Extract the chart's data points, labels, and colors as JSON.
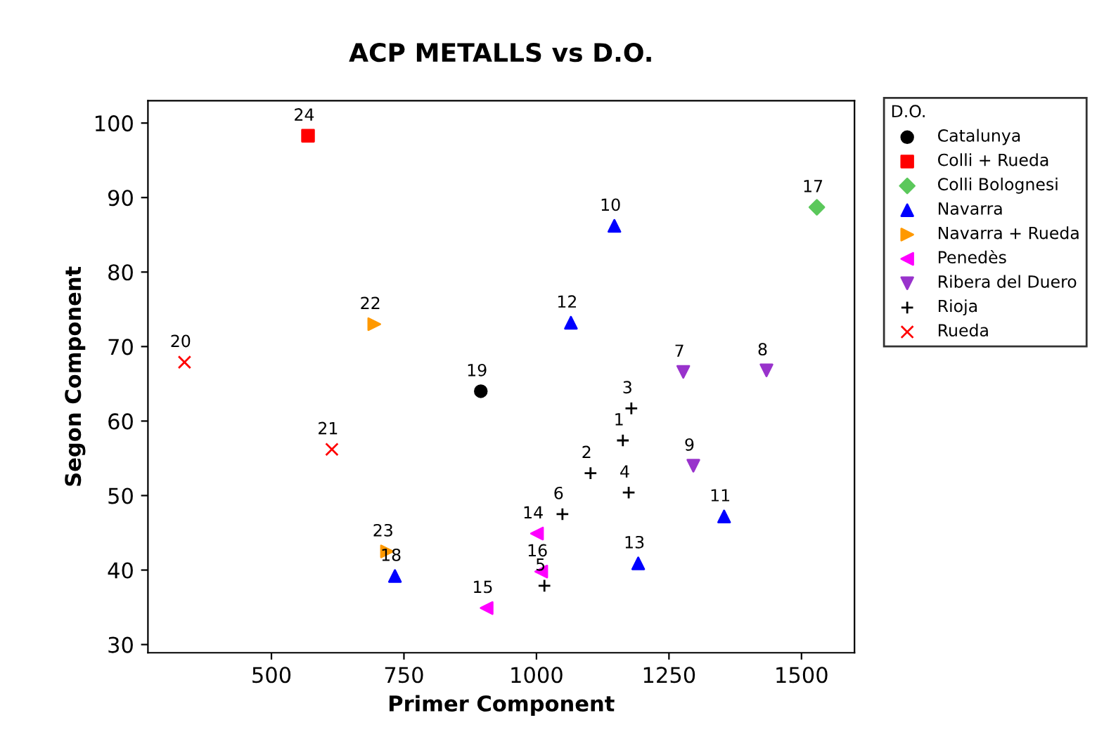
{
  "chart_data": {
    "type": "scatter",
    "title": "ACP METALLS vs D.O.",
    "xlabel": "Primer Component",
    "ylabel": "Segon Component",
    "legend_title": "D.O.",
    "legend": "top right",
    "grid": false,
    "xlim": [
      267,
      1600
    ],
    "ylim": [
      28.9,
      103
    ],
    "xticks": [
      500,
      750,
      1000,
      1250,
      1500
    ],
    "yticks": [
      30,
      40,
      50,
      60,
      70,
      80,
      90,
      100
    ],
    "series": [
      {
        "name": "Catalunya",
        "color": "#000000",
        "marker": "circle",
        "x": [
          895
        ],
        "values": [
          64.0
        ]
      },
      {
        "name": "Colli + Rueda",
        "color": "#ff0000",
        "marker": "square",
        "x": [
          569
        ],
        "values": [
          98.3
        ]
      },
      {
        "name": "Colli Bolognesi",
        "color": "#5bc85b",
        "marker": "diamond",
        "x": [
          1529
        ],
        "values": [
          88.7
        ]
      },
      {
        "name": "Navarra",
        "color": "#0000ff",
        "marker": "triangle",
        "x": [
          1147,
          1065,
          1354,
          1192,
          733
        ],
        "values": [
          86.2,
          73.2,
          47.2,
          40.9,
          39.2
        ]
      },
      {
        "name": "Navarra + Rueda",
        "color": "#ff9900",
        "marker": "triangle_right",
        "x": [
          694,
          718
        ],
        "values": [
          73.0,
          42.5
        ]
      },
      {
        "name": "Penedès",
        "color": "#ff00ff",
        "marker": "triangle_left",
        "x": [
          1001,
          1009,
          906
        ],
        "values": [
          44.9,
          39.8,
          34.9
        ]
      },
      {
        "name": "Ribera del Duero",
        "color": "#9933cc",
        "marker": "triangle_down",
        "x": [
          1277,
          1434,
          1296
        ],
        "values": [
          66.6,
          66.8,
          54.0
        ]
      },
      {
        "name": "Rioja",
        "color": "#000000",
        "marker": "plus",
        "x": [
          1179,
          1163,
          1102,
          1174,
          1049,
          1015
        ],
        "values": [
          61.7,
          57.4,
          53.0,
          50.4,
          47.5,
          37.9
        ]
      },
      {
        "name": "Rueda",
        "color": "#ff0000",
        "marker": "cross",
        "x": [
          336,
          614
        ],
        "values": [
          67.9,
          56.2
        ]
      }
    ],
    "annotations": [
      {
        "text": "19",
        "x": 895,
        "y": 64.0
      },
      {
        "text": "24",
        "x": 569,
        "y": 98.3
      },
      {
        "text": "17",
        "x": 1529,
        "y": 88.7
      },
      {
        "text": "10",
        "x": 1147,
        "y": 86.2
      },
      {
        "text": "12",
        "x": 1065,
        "y": 73.2
      },
      {
        "text": "11",
        "x": 1354,
        "y": 47.2
      },
      {
        "text": "13",
        "x": 1192,
        "y": 40.9
      },
      {
        "text": "18",
        "x": 733,
        "y": 39.2
      },
      {
        "text": "22",
        "x": 694,
        "y": 73.0
      },
      {
        "text": "23",
        "x": 718,
        "y": 42.5
      },
      {
        "text": "14",
        "x": 1001,
        "y": 44.9
      },
      {
        "text": "16",
        "x": 1009,
        "y": 39.8
      },
      {
        "text": "15",
        "x": 906,
        "y": 34.9
      },
      {
        "text": "7",
        "x": 1277,
        "y": 66.6
      },
      {
        "text": "8",
        "x": 1434,
        "y": 66.8
      },
      {
        "text": "9",
        "x": 1296,
        "y": 54.0
      },
      {
        "text": "3",
        "x": 1179,
        "y": 61.7
      },
      {
        "text": "1",
        "x": 1163,
        "y": 57.4
      },
      {
        "text": "2",
        "x": 1102,
        "y": 53.0
      },
      {
        "text": "4",
        "x": 1174,
        "y": 50.4
      },
      {
        "text": "6",
        "x": 1049,
        "y": 47.5
      },
      {
        "text": "5",
        "x": 1015,
        "y": 37.9
      },
      {
        "text": "20",
        "x": 336,
        "y": 67.9
      },
      {
        "text": "21",
        "x": 614,
        "y": 56.2
      }
    ]
  }
}
